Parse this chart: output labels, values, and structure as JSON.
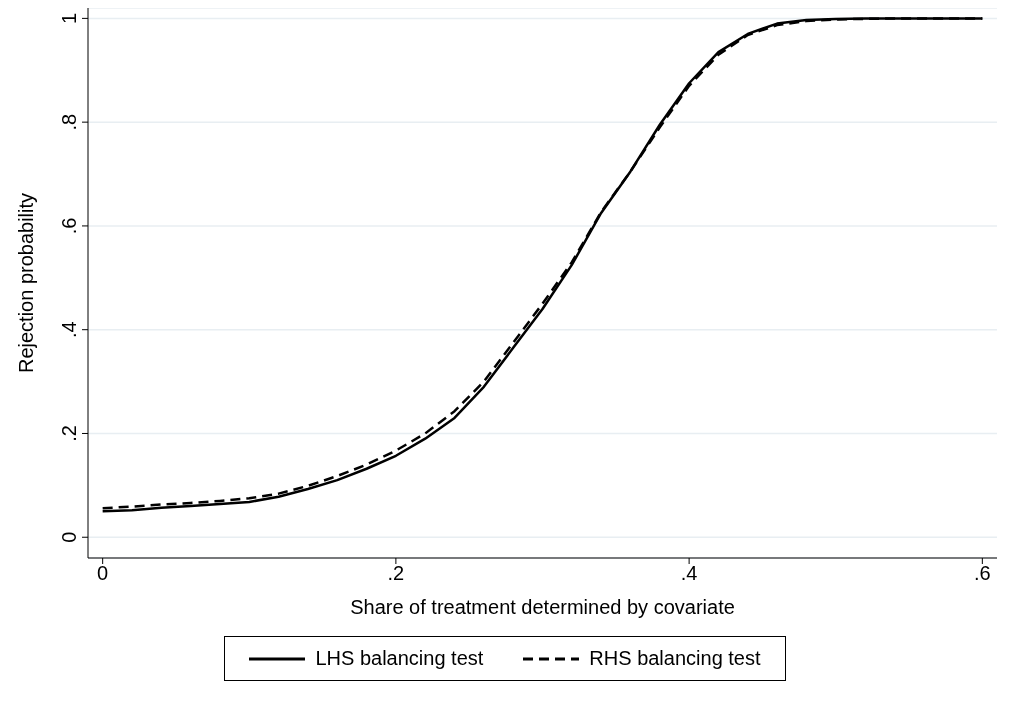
{
  "chart_data": {
    "type": "line",
    "xlabel": "Share of treatment determined by covariate",
    "ylabel": "Rejection probability",
    "x": [
      0,
      0.02,
      0.04,
      0.06,
      0.08,
      0.1,
      0.12,
      0.14,
      0.16,
      0.18,
      0.2,
      0.22,
      0.24,
      0.26,
      0.28,
      0.3,
      0.32,
      0.34,
      0.36,
      0.38,
      0.4,
      0.42,
      0.44,
      0.46,
      0.48,
      0.5,
      0.52,
      0.54,
      0.56,
      0.58,
      0.6
    ],
    "series": [
      {
        "name": "LHS balancing test",
        "color": "#000000",
        "line_style": "solid",
        "values": [
          0.05,
          0.052,
          0.057,
          0.06,
          0.064,
          0.068,
          0.078,
          0.093,
          0.11,
          0.132,
          0.157,
          0.19,
          0.23,
          0.29,
          0.365,
          0.44,
          0.525,
          0.625,
          0.705,
          0.795,
          0.875,
          0.935,
          0.97,
          0.99,
          0.997,
          0.999,
          1,
          1,
          1,
          1,
          1
        ]
      },
      {
        "name": "RHS balancing test",
        "color": "#000000",
        "line_style": "dashed",
        "values": [
          0.056,
          0.059,
          0.063,
          0.066,
          0.07,
          0.075,
          0.084,
          0.099,
          0.118,
          0.14,
          0.167,
          0.2,
          0.243,
          0.3,
          0.375,
          0.45,
          0.53,
          0.627,
          0.705,
          0.79,
          0.87,
          0.93,
          0.968,
          0.987,
          0.995,
          0.998,
          0.999,
          1,
          1,
          1,
          1
        ]
      }
    ],
    "xlim": [
      -0.01,
      0.61
    ],
    "xticks": [
      0,
      {
        "value": 0.2,
        "label": ".2"
      },
      {
        "value": 0.4,
        "label": ".4"
      },
      {
        "value": 0.6,
        "label": ".6"
      }
    ],
    "ylim": [
      -0.04,
      1.02
    ],
    "yticks": [
      0,
      {
        "value": 0.2,
        "label": ".2"
      },
      {
        "value": 0.4,
        "label": ".4"
      },
      {
        "value": 0.6,
        "label": ".6"
      },
      {
        "value": 0.8,
        "label": ".8"
      },
      1
    ],
    "grid": "y",
    "legend": "bottom",
    "marker": "none"
  }
}
